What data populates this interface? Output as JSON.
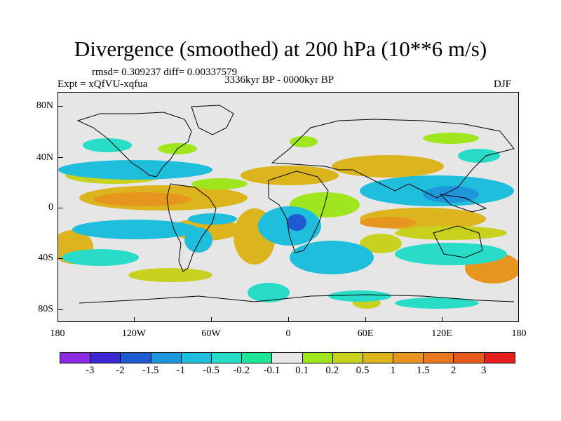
{
  "title": "Divergence (smoothed) at 200 hPa (10**6 m/s)",
  "stats": "rmsd= 0.309237  diff= 0.00337579",
  "experiment": "Expt = xQfVU-xqfua",
  "period": "3336kyr BP - 0000kyr BP",
  "season": "DJF",
  "lat_labels": [
    "80N",
    "40N",
    "0",
    "40S",
    "80S"
  ],
  "lon_labels": [
    "180",
    "120W",
    "60W",
    "0",
    "60E",
    "120E",
    "180"
  ],
  "colorbar": {
    "colors": [
      "#8a2be2",
      "#3c28d2",
      "#1e5ad2",
      "#1e96dc",
      "#1ebedc",
      "#28dcc8",
      "#1ee696",
      "#e6e6e6",
      "#a0e61e",
      "#c8d21e",
      "#dcb41e",
      "#e6961e",
      "#e6781e",
      "#e65a1e",
      "#e61e1e"
    ],
    "labels": [
      "-3",
      "-2",
      "-1.5",
      "-1",
      "-0.5",
      "-0.2",
      "-0.1",
      "0.1",
      "0.2",
      "0.5",
      "1",
      "1.5",
      "2",
      "3"
    ]
  }
}
